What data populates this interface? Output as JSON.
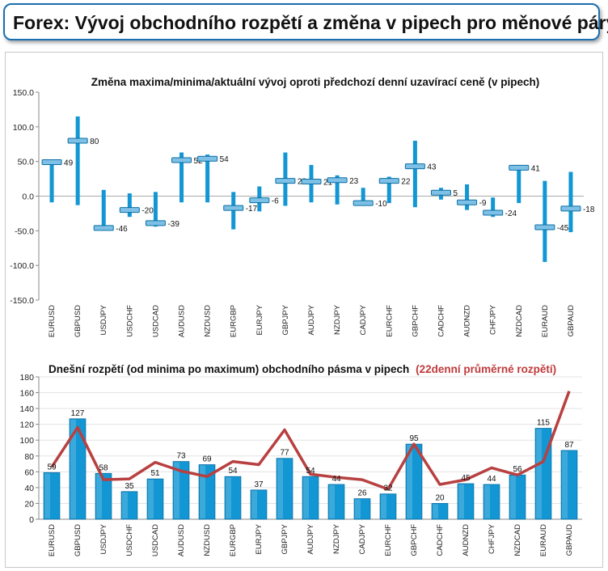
{
  "header": {
    "title": "Forex: Vývoj obchodního rozpětí a změna v pipech pro měnové páry"
  },
  "colors": {
    "bar": "#1296d4",
    "bar_dark": "#0a6fa3",
    "line": "#b84040",
    "marker": "#7ec0e6",
    "frame": "#1a6fb0"
  },
  "chart_data": [
    {
      "type": "range",
      "title": "Změna maxima/minima/aktuální vývoj oproti předchozí denní uzavírací ceně (v pipech)",
      "ylim": [
        -150,
        150
      ],
      "yticks": [
        "150.0",
        "100.0",
        "50.0",
        "0.0",
        "-50.0",
        "-100.0",
        "-150.0"
      ],
      "ytick_values": [
        150,
        100,
        50,
        0,
        -50,
        -100,
        -150
      ],
      "categories": [
        "EURUSD",
        "GBPUSD",
        "USDJPY",
        "USDCHF",
        "USDCAD",
        "AUDUSD",
        "NZDUSD",
        "EURGBP",
        "EURJPY",
        "GBPJPY",
        "AUDJPY",
        "NZDJPY",
        "CADJPY",
        "EURCHF",
        "GBPCHF",
        "CADCHF",
        "AUDNZD",
        "CHFJPY",
        "NZDCAD",
        "EURAUD",
        "GBPAUD"
      ],
      "high": [
        50,
        115,
        9,
        4,
        6,
        63,
        60,
        6,
        14,
        63,
        45,
        30,
        12,
        28,
        80,
        12,
        17,
        -2,
        45,
        22,
        35
      ],
      "low": [
        -9,
        -13,
        -47,
        -30,
        -44,
        -9,
        -9,
        -48,
        -22,
        -14,
        -9,
        -12,
        -12,
        -10,
        -16,
        -5,
        -20,
        -30,
        -10,
        -95,
        -52
      ],
      "current": [
        49,
        80,
        -46,
        -20,
        -39,
        52,
        54,
        -17,
        -6,
        22,
        21,
        23,
        -10,
        22,
        43,
        5,
        -9,
        -24,
        41,
        -45,
        -18
      ],
      "labels": [
        "49",
        "80",
        "-46",
        "-20",
        "-39",
        "52",
        "54",
        "-17",
        "-6",
        "22",
        "21",
        "23",
        "-10",
        "22",
        "43",
        "5",
        "-9",
        "-24",
        "41",
        "-45",
        "-18"
      ]
    },
    {
      "type": "bar",
      "title": "Dnešní rozpětí (od minima po maximum) obchodního pásma v pipech",
      "title_extra": "(22denní průměrné rozpětí)",
      "ylim": [
        0,
        180
      ],
      "yticks": [
        "180",
        "160",
        "140",
        "120",
        "100",
        "80",
        "60",
        "40",
        "20",
        "0"
      ],
      "ytick_values": [
        180,
        160,
        140,
        120,
        100,
        80,
        60,
        40,
        20,
        0
      ],
      "categories": [
        "EURUSD",
        "GBPUSD",
        "USDJPY",
        "USDCHF",
        "USDCAD",
        "AUDUSD",
        "NZDUSD",
        "EURGBP",
        "EURJPY",
        "GBPJPY",
        "AUDJPY",
        "NZDJPY",
        "CADJPY",
        "EURCHF",
        "GBPCHF",
        "CADCHF",
        "AUDNZD",
        "CHFJPY",
        "NZDCAD",
        "EURAUD",
        "GBPAUD"
      ],
      "values": [
        59,
        127,
        58,
        35,
        51,
        73,
        69,
        54,
        37,
        77,
        54,
        44,
        26,
        32,
        95,
        20,
        45,
        44,
        56,
        115,
        87
      ],
      "value_labels": [
        "59",
        "127",
        "58",
        "35",
        "51",
        "73",
        "69",
        "54",
        "37",
        "77",
        "54",
        "44",
        "26",
        "32",
        "95",
        "20",
        "45",
        "44",
        "56",
        "115",
        "87"
      ],
      "line_values": [
        66,
        116,
        50,
        51,
        72,
        61,
        54,
        73,
        69,
        113,
        57,
        53,
        50,
        38,
        95,
        44,
        50,
        65,
        56,
        73,
        162
      ]
    }
  ]
}
